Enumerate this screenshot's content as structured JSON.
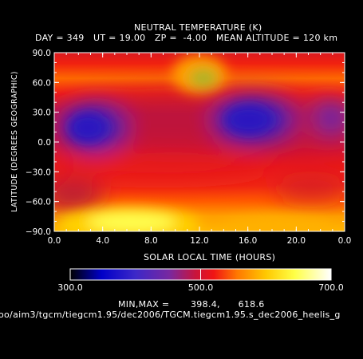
{
  "header": {
    "title": "NEUTRAL TEMPERATURE (K)",
    "subtitle": "DAY = 349   UT = 19.00   ZP =  -4.00   MEAN ALTITUDE = 120 km"
  },
  "footer": {
    "minmax": "MIN,MAX =       398.4,      618.6",
    "path": "oo/aim3/tgcm/tiegcm1.95/dec2006/TGCM.tiegcm1.95.s_dec2006_heelis_g"
  },
  "chart_data": {
    "type": "heatmap",
    "title": "NEUTRAL TEMPERATURE (K)",
    "xlabel": "SOLAR LOCAL TIME (HOURS)",
    "ylabel": "LATITUDE (DEGREES GEOGRAPHIC)",
    "xlim": [
      0,
      24
    ],
    "ylim": [
      -90,
      90
    ],
    "xticks": [
      "0.0",
      "4.0",
      "8.0",
      "12.0",
      "16.0",
      "20.0",
      "0.0"
    ],
    "yticks": [
      "90.0",
      "60.0",
      "30.0",
      "0.0",
      "-30.0",
      "-60.0",
      "-90.0"
    ],
    "colorbar": {
      "min": 300.0,
      "max": 700.0,
      "ticks": [
        "300.0",
        "500.0",
        "700.0"
      ],
      "colors": [
        "#000000",
        "#0000c8",
        "#3c28c8",
        "#7828a0",
        "#c8143c",
        "#f01414",
        "#ff7800",
        "#ffc800",
        "#ffff46",
        "#ffffff"
      ]
    },
    "value_range": [
      398.4,
      618.6
    ],
    "features": [
      {
        "name": "cold-cell-northern-dawn",
        "x": 2.5,
        "y": 15,
        "value": 410
      },
      {
        "name": "cold-cell-northern-afternoon",
        "x": 16.0,
        "y": 20,
        "value": 405
      },
      {
        "name": "cold-cell-midnight",
        "x": 23.0,
        "y": 25,
        "value": 430
      },
      {
        "name": "warm-spot-north-noon",
        "x": 12.0,
        "y": 55,
        "value": 560
      },
      {
        "name": "warm-band-south-polar",
        "x": 7.0,
        "y": -78,
        "value": 610
      }
    ]
  }
}
